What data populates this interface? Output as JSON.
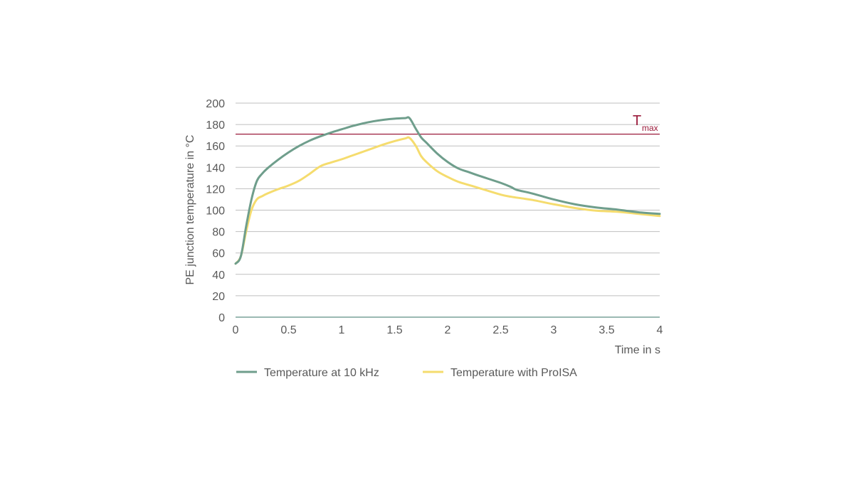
{
  "chart_data": {
    "type": "line",
    "title": "",
    "xlabel": "Time in s",
    "ylabel": "PE junction temperature in °C",
    "xlim": [
      0,
      4
    ],
    "ylim": [
      0,
      200
    ],
    "x_ticks": [
      "0",
      "0.5",
      "1",
      "1.5",
      "2",
      "2.5",
      "3",
      "3.5",
      "4"
    ],
    "y_ticks": [
      "0",
      "20",
      "40",
      "60",
      "80",
      "100",
      "120",
      "140",
      "160",
      "180",
      "200"
    ],
    "grid": "horizontal",
    "legend_position": "bottom",
    "reference_line": {
      "label": "T",
      "label_sub": "max",
      "y": 171,
      "color": "#9b1b3b"
    },
    "series": [
      {
        "name": "Temperature at 10 kHz",
        "color": "#6f9e8c",
        "x": [
          0,
          0.05,
          0.1,
          0.15,
          0.2,
          0.25,
          0.3,
          0.4,
          0.5,
          0.6,
          0.7,
          0.8,
          0.9,
          1.0,
          1.1,
          1.2,
          1.3,
          1.4,
          1.5,
          1.6,
          1.64,
          1.7,
          1.75,
          1.8,
          1.9,
          2.0,
          2.1,
          2.2,
          2.3,
          2.5,
          2.6,
          2.65,
          2.8,
          3.0,
          3.2,
          3.4,
          3.6,
          3.8,
          4.0
        ],
        "y": [
          50,
          57,
          85,
          110,
          127,
          134,
          139,
          147,
          154,
          160,
          165,
          169,
          172.5,
          175.5,
          178.5,
          181,
          183,
          184.5,
          185.5,
          186,
          186,
          176,
          168,
          163,
          153,
          145,
          139,
          135.5,
          132,
          125.5,
          121.5,
          119,
          115.5,
          110,
          105.5,
          102.5,
          100.5,
          98,
          96.5
        ]
      },
      {
        "name": "Temperature with ProISA",
        "color": "#f5dc6e",
        "x": [
          0,
          0.05,
          0.1,
          0.15,
          0.2,
          0.25,
          0.3,
          0.4,
          0.5,
          0.6,
          0.7,
          0.8,
          0.9,
          1.0,
          1.1,
          1.2,
          1.3,
          1.4,
          1.5,
          1.6,
          1.64,
          1.7,
          1.75,
          1.8,
          1.9,
          2.0,
          2.1,
          2.2,
          2.3,
          2.5,
          2.6,
          2.7,
          2.8,
          3.0,
          3.2,
          3.4,
          3.6,
          3.8,
          4.0
        ],
        "y": [
          50,
          57,
          80,
          100,
          110,
          113,
          115.5,
          119.5,
          123,
          127.5,
          134,
          141,
          144.5,
          147.5,
          151,
          154.5,
          158,
          161.5,
          164.5,
          167,
          167.5,
          160,
          150.5,
          145,
          136.5,
          131,
          126.5,
          123.5,
          120.5,
          114.5,
          112.5,
          111,
          109.5,
          105.5,
          102,
          99.5,
          98.5,
          96.5,
          94.5
        ]
      }
    ]
  }
}
